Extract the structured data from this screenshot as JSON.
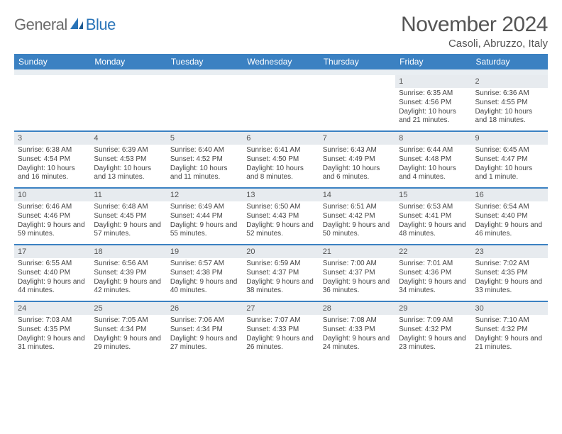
{
  "logo": {
    "text1": "General",
    "text2": "Blue"
  },
  "title": "November 2024",
  "location": "Casoli, Abruzzo, Italy",
  "colors": {
    "header_bg": "#3b81c2",
    "header_text": "#ffffff",
    "daynum_bg": "#e7ebef",
    "border": "#3b81c2",
    "body_text": "#444444",
    "title_text": "#555555"
  },
  "day_headers": [
    "Sunday",
    "Monday",
    "Tuesday",
    "Wednesday",
    "Thursday",
    "Friday",
    "Saturday"
  ],
  "weeks": [
    [
      {
        "n": "",
        "sunrise": "",
        "sunset": "",
        "daylight": ""
      },
      {
        "n": "",
        "sunrise": "",
        "sunset": "",
        "daylight": ""
      },
      {
        "n": "",
        "sunrise": "",
        "sunset": "",
        "daylight": ""
      },
      {
        "n": "",
        "sunrise": "",
        "sunset": "",
        "daylight": ""
      },
      {
        "n": "",
        "sunrise": "",
        "sunset": "",
        "daylight": ""
      },
      {
        "n": "1",
        "sunrise": "Sunrise: 6:35 AM",
        "sunset": "Sunset: 4:56 PM",
        "daylight": "Daylight: 10 hours and 21 minutes."
      },
      {
        "n": "2",
        "sunrise": "Sunrise: 6:36 AM",
        "sunset": "Sunset: 4:55 PM",
        "daylight": "Daylight: 10 hours and 18 minutes."
      }
    ],
    [
      {
        "n": "3",
        "sunrise": "Sunrise: 6:38 AM",
        "sunset": "Sunset: 4:54 PM",
        "daylight": "Daylight: 10 hours and 16 minutes."
      },
      {
        "n": "4",
        "sunrise": "Sunrise: 6:39 AM",
        "sunset": "Sunset: 4:53 PM",
        "daylight": "Daylight: 10 hours and 13 minutes."
      },
      {
        "n": "5",
        "sunrise": "Sunrise: 6:40 AM",
        "sunset": "Sunset: 4:52 PM",
        "daylight": "Daylight: 10 hours and 11 minutes."
      },
      {
        "n": "6",
        "sunrise": "Sunrise: 6:41 AM",
        "sunset": "Sunset: 4:50 PM",
        "daylight": "Daylight: 10 hours and 8 minutes."
      },
      {
        "n": "7",
        "sunrise": "Sunrise: 6:43 AM",
        "sunset": "Sunset: 4:49 PM",
        "daylight": "Daylight: 10 hours and 6 minutes."
      },
      {
        "n": "8",
        "sunrise": "Sunrise: 6:44 AM",
        "sunset": "Sunset: 4:48 PM",
        "daylight": "Daylight: 10 hours and 4 minutes."
      },
      {
        "n": "9",
        "sunrise": "Sunrise: 6:45 AM",
        "sunset": "Sunset: 4:47 PM",
        "daylight": "Daylight: 10 hours and 1 minute."
      }
    ],
    [
      {
        "n": "10",
        "sunrise": "Sunrise: 6:46 AM",
        "sunset": "Sunset: 4:46 PM",
        "daylight": "Daylight: 9 hours and 59 minutes."
      },
      {
        "n": "11",
        "sunrise": "Sunrise: 6:48 AM",
        "sunset": "Sunset: 4:45 PM",
        "daylight": "Daylight: 9 hours and 57 minutes."
      },
      {
        "n": "12",
        "sunrise": "Sunrise: 6:49 AM",
        "sunset": "Sunset: 4:44 PM",
        "daylight": "Daylight: 9 hours and 55 minutes."
      },
      {
        "n": "13",
        "sunrise": "Sunrise: 6:50 AM",
        "sunset": "Sunset: 4:43 PM",
        "daylight": "Daylight: 9 hours and 52 minutes."
      },
      {
        "n": "14",
        "sunrise": "Sunrise: 6:51 AM",
        "sunset": "Sunset: 4:42 PM",
        "daylight": "Daylight: 9 hours and 50 minutes."
      },
      {
        "n": "15",
        "sunrise": "Sunrise: 6:53 AM",
        "sunset": "Sunset: 4:41 PM",
        "daylight": "Daylight: 9 hours and 48 minutes."
      },
      {
        "n": "16",
        "sunrise": "Sunrise: 6:54 AM",
        "sunset": "Sunset: 4:40 PM",
        "daylight": "Daylight: 9 hours and 46 minutes."
      }
    ],
    [
      {
        "n": "17",
        "sunrise": "Sunrise: 6:55 AM",
        "sunset": "Sunset: 4:40 PM",
        "daylight": "Daylight: 9 hours and 44 minutes."
      },
      {
        "n": "18",
        "sunrise": "Sunrise: 6:56 AM",
        "sunset": "Sunset: 4:39 PM",
        "daylight": "Daylight: 9 hours and 42 minutes."
      },
      {
        "n": "19",
        "sunrise": "Sunrise: 6:57 AM",
        "sunset": "Sunset: 4:38 PM",
        "daylight": "Daylight: 9 hours and 40 minutes."
      },
      {
        "n": "20",
        "sunrise": "Sunrise: 6:59 AM",
        "sunset": "Sunset: 4:37 PM",
        "daylight": "Daylight: 9 hours and 38 minutes."
      },
      {
        "n": "21",
        "sunrise": "Sunrise: 7:00 AM",
        "sunset": "Sunset: 4:37 PM",
        "daylight": "Daylight: 9 hours and 36 minutes."
      },
      {
        "n": "22",
        "sunrise": "Sunrise: 7:01 AM",
        "sunset": "Sunset: 4:36 PM",
        "daylight": "Daylight: 9 hours and 34 minutes."
      },
      {
        "n": "23",
        "sunrise": "Sunrise: 7:02 AM",
        "sunset": "Sunset: 4:35 PM",
        "daylight": "Daylight: 9 hours and 33 minutes."
      }
    ],
    [
      {
        "n": "24",
        "sunrise": "Sunrise: 7:03 AM",
        "sunset": "Sunset: 4:35 PM",
        "daylight": "Daylight: 9 hours and 31 minutes."
      },
      {
        "n": "25",
        "sunrise": "Sunrise: 7:05 AM",
        "sunset": "Sunset: 4:34 PM",
        "daylight": "Daylight: 9 hours and 29 minutes."
      },
      {
        "n": "26",
        "sunrise": "Sunrise: 7:06 AM",
        "sunset": "Sunset: 4:34 PM",
        "daylight": "Daylight: 9 hours and 27 minutes."
      },
      {
        "n": "27",
        "sunrise": "Sunrise: 7:07 AM",
        "sunset": "Sunset: 4:33 PM",
        "daylight": "Daylight: 9 hours and 26 minutes."
      },
      {
        "n": "28",
        "sunrise": "Sunrise: 7:08 AM",
        "sunset": "Sunset: 4:33 PM",
        "daylight": "Daylight: 9 hours and 24 minutes."
      },
      {
        "n": "29",
        "sunrise": "Sunrise: 7:09 AM",
        "sunset": "Sunset: 4:32 PM",
        "daylight": "Daylight: 9 hours and 23 minutes."
      },
      {
        "n": "30",
        "sunrise": "Sunrise: 7:10 AM",
        "sunset": "Sunset: 4:32 PM",
        "daylight": "Daylight: 9 hours and 21 minutes."
      }
    ]
  ]
}
